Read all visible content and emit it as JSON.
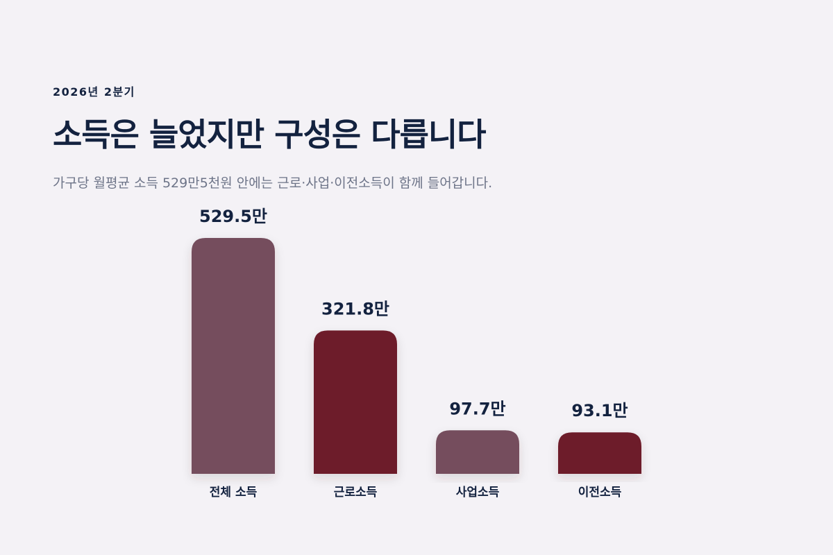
{
  "header": {
    "eyebrow": "2026년 2분기",
    "title": "소득은 늘었지만 구성은 다릅니다",
    "subtitle": "가구당 월평균 소득 529만5천원 안에는 근로·사업·이전소득이 함께 들어갑니다."
  },
  "colors": {
    "background": "#f4f2f6",
    "text": "#13223f",
    "subtext": "#6d7488",
    "bar_total": "#744e5d",
    "bar_component": "#6d1c2a"
  },
  "chart_data": {
    "type": "bar",
    "title": "소득은 늘었지만 구성은 다릅니다",
    "categories": [
      "전체 소득",
      "근로소득",
      "사업소득",
      "이전소득"
    ],
    "values": [
      529.5,
      321.8,
      97.7,
      93.1
    ],
    "value_labels": [
      "529.5만",
      "321.8만",
      "97.7만",
      "93.1만"
    ],
    "bar_colors": [
      "#744e5d",
      "#6d1c2a",
      "#744e5d",
      "#6d1c2a"
    ],
    "xlabel": "",
    "ylabel": "",
    "ylim": [
      0,
      529.5
    ],
    "grid": false,
    "legend": "none"
  }
}
